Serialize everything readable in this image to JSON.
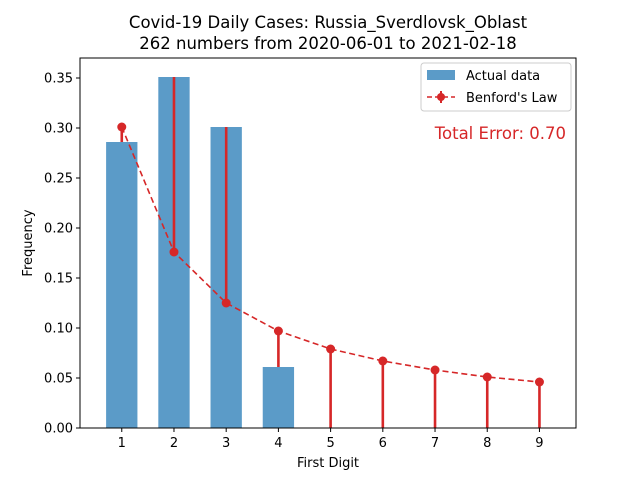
{
  "chart_data": {
    "type": "bar",
    "title": "Covid-19 Daily Cases: Russia_Sverdlovsk_Oblast",
    "subtitle": "262 numbers from 2020-06-01 to 2021-02-18",
    "xlabel": "First Digit",
    "ylabel": "Frequency",
    "categories": [
      "1",
      "2",
      "3",
      "4",
      "5",
      "6",
      "7",
      "8",
      "9"
    ],
    "x": [
      1,
      2,
      3,
      4,
      5,
      6,
      7,
      8,
      9
    ],
    "ylim": [
      0,
      0.37
    ],
    "xlim": [
      0.2,
      9.7
    ],
    "yticks": [
      "0.00",
      "0.05",
      "0.10",
      "0.15",
      "0.20",
      "0.25",
      "0.30",
      "0.35"
    ],
    "ytick_values": [
      0,
      0.05,
      0.1,
      0.15,
      0.2,
      0.25,
      0.3,
      0.35
    ],
    "grid": false,
    "legend_position": "top-right",
    "series": [
      {
        "name": "Actual data",
        "kind": "bar",
        "color": "#5b9bc8",
        "values": [
          0.286,
          0.351,
          0.301,
          0.061,
          0.0,
          0.0,
          0.0,
          0.0,
          0.0
        ]
      },
      {
        "name": "Benford's Law",
        "kind": "line-errorbar",
        "color": "#d62728",
        "values": [
          0.301,
          0.176,
          0.125,
          0.097,
          0.079,
          0.067,
          0.058,
          0.051,
          0.046
        ]
      }
    ],
    "annotation": "Total Error: 0.70",
    "annotation_color": "#d62728"
  }
}
